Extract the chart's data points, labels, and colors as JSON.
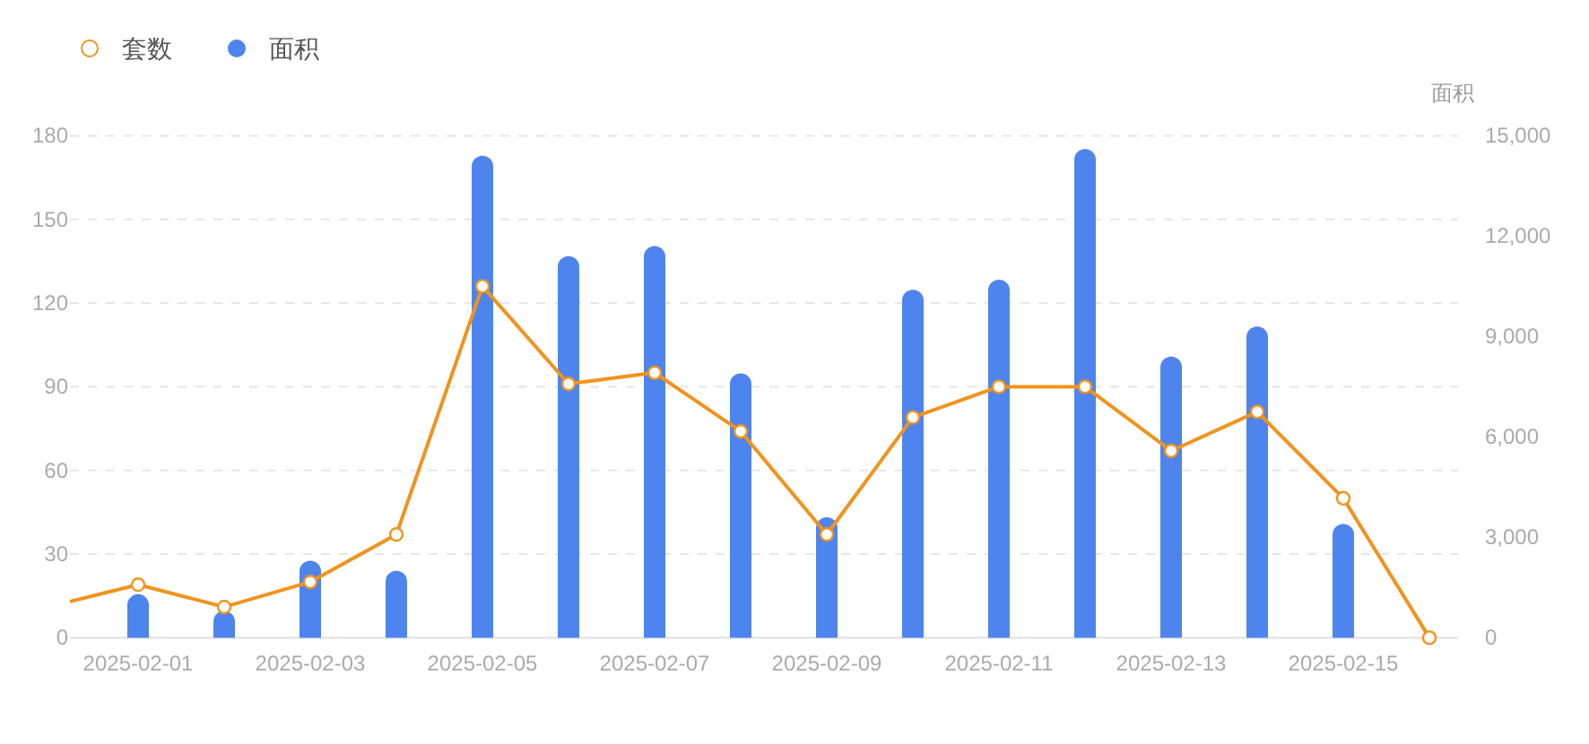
{
  "chart_data": {
    "type": "bar",
    "x": [
      "2025-01-31T05:00",
      "2025-02-01",
      "2025-02-02",
      "2025-02-03",
      "2025-02-04",
      "2025-02-05",
      "2025-02-06",
      "2025-02-07",
      "2025-02-08",
      "2025-02-09",
      "2025-02-10",
      "2025-02-11",
      "2025-02-12",
      "2025-02-13",
      "2025-02-14",
      "2025-02-15",
      "2025-02-16"
    ],
    "series": [
      {
        "name": "套数",
        "type": "line",
        "color": "#f0931d",
        "marker": "circle",
        "values": [
          13,
          19,
          11,
          20,
          37,
          126,
          91,
          95,
          74,
          37,
          79,
          90,
          90,
          67,
          81,
          50,
          0
        ]
      },
      {
        "name": "面积",
        "axis": "y2",
        "color": "#4e84ee",
        "values": [
          null,
          1300,
          800,
          2300,
          2000,
          14400,
          11400,
          11700,
          7900,
          3600,
          10400,
          10700,
          14600,
          8400,
          9300,
          3400,
          0
        ]
      }
    ],
    "xlim": [
      "2025-01-31T05:00",
      "2025-02-16T08:00"
    ],
    "xticks": [
      "2025-02-01",
      "2025-02-03",
      "2025-02-05",
      "2025-02-07",
      "2025-02-09",
      "2025-02-11",
      "2025-02-13",
      "2025-02-15"
    ],
    "ylim": [
      0,
      180
    ],
    "yticks": [
      0,
      30,
      60,
      90,
      120,
      150,
      180
    ],
    "y2lim": [
      0,
      15000
    ],
    "y2ticks": [
      0,
      {
        "value": 3000,
        "label": "3,000"
      },
      {
        "value": 6000,
        "label": "6,000"
      },
      {
        "value": 9000,
        "label": "9,000"
      },
      {
        "value": 12000,
        "label": "12,000"
      },
      {
        "value": 15000,
        "label": "15,000"
      }
    ],
    "y2label": "面积",
    "grid": "y",
    "legend": "top left"
  }
}
